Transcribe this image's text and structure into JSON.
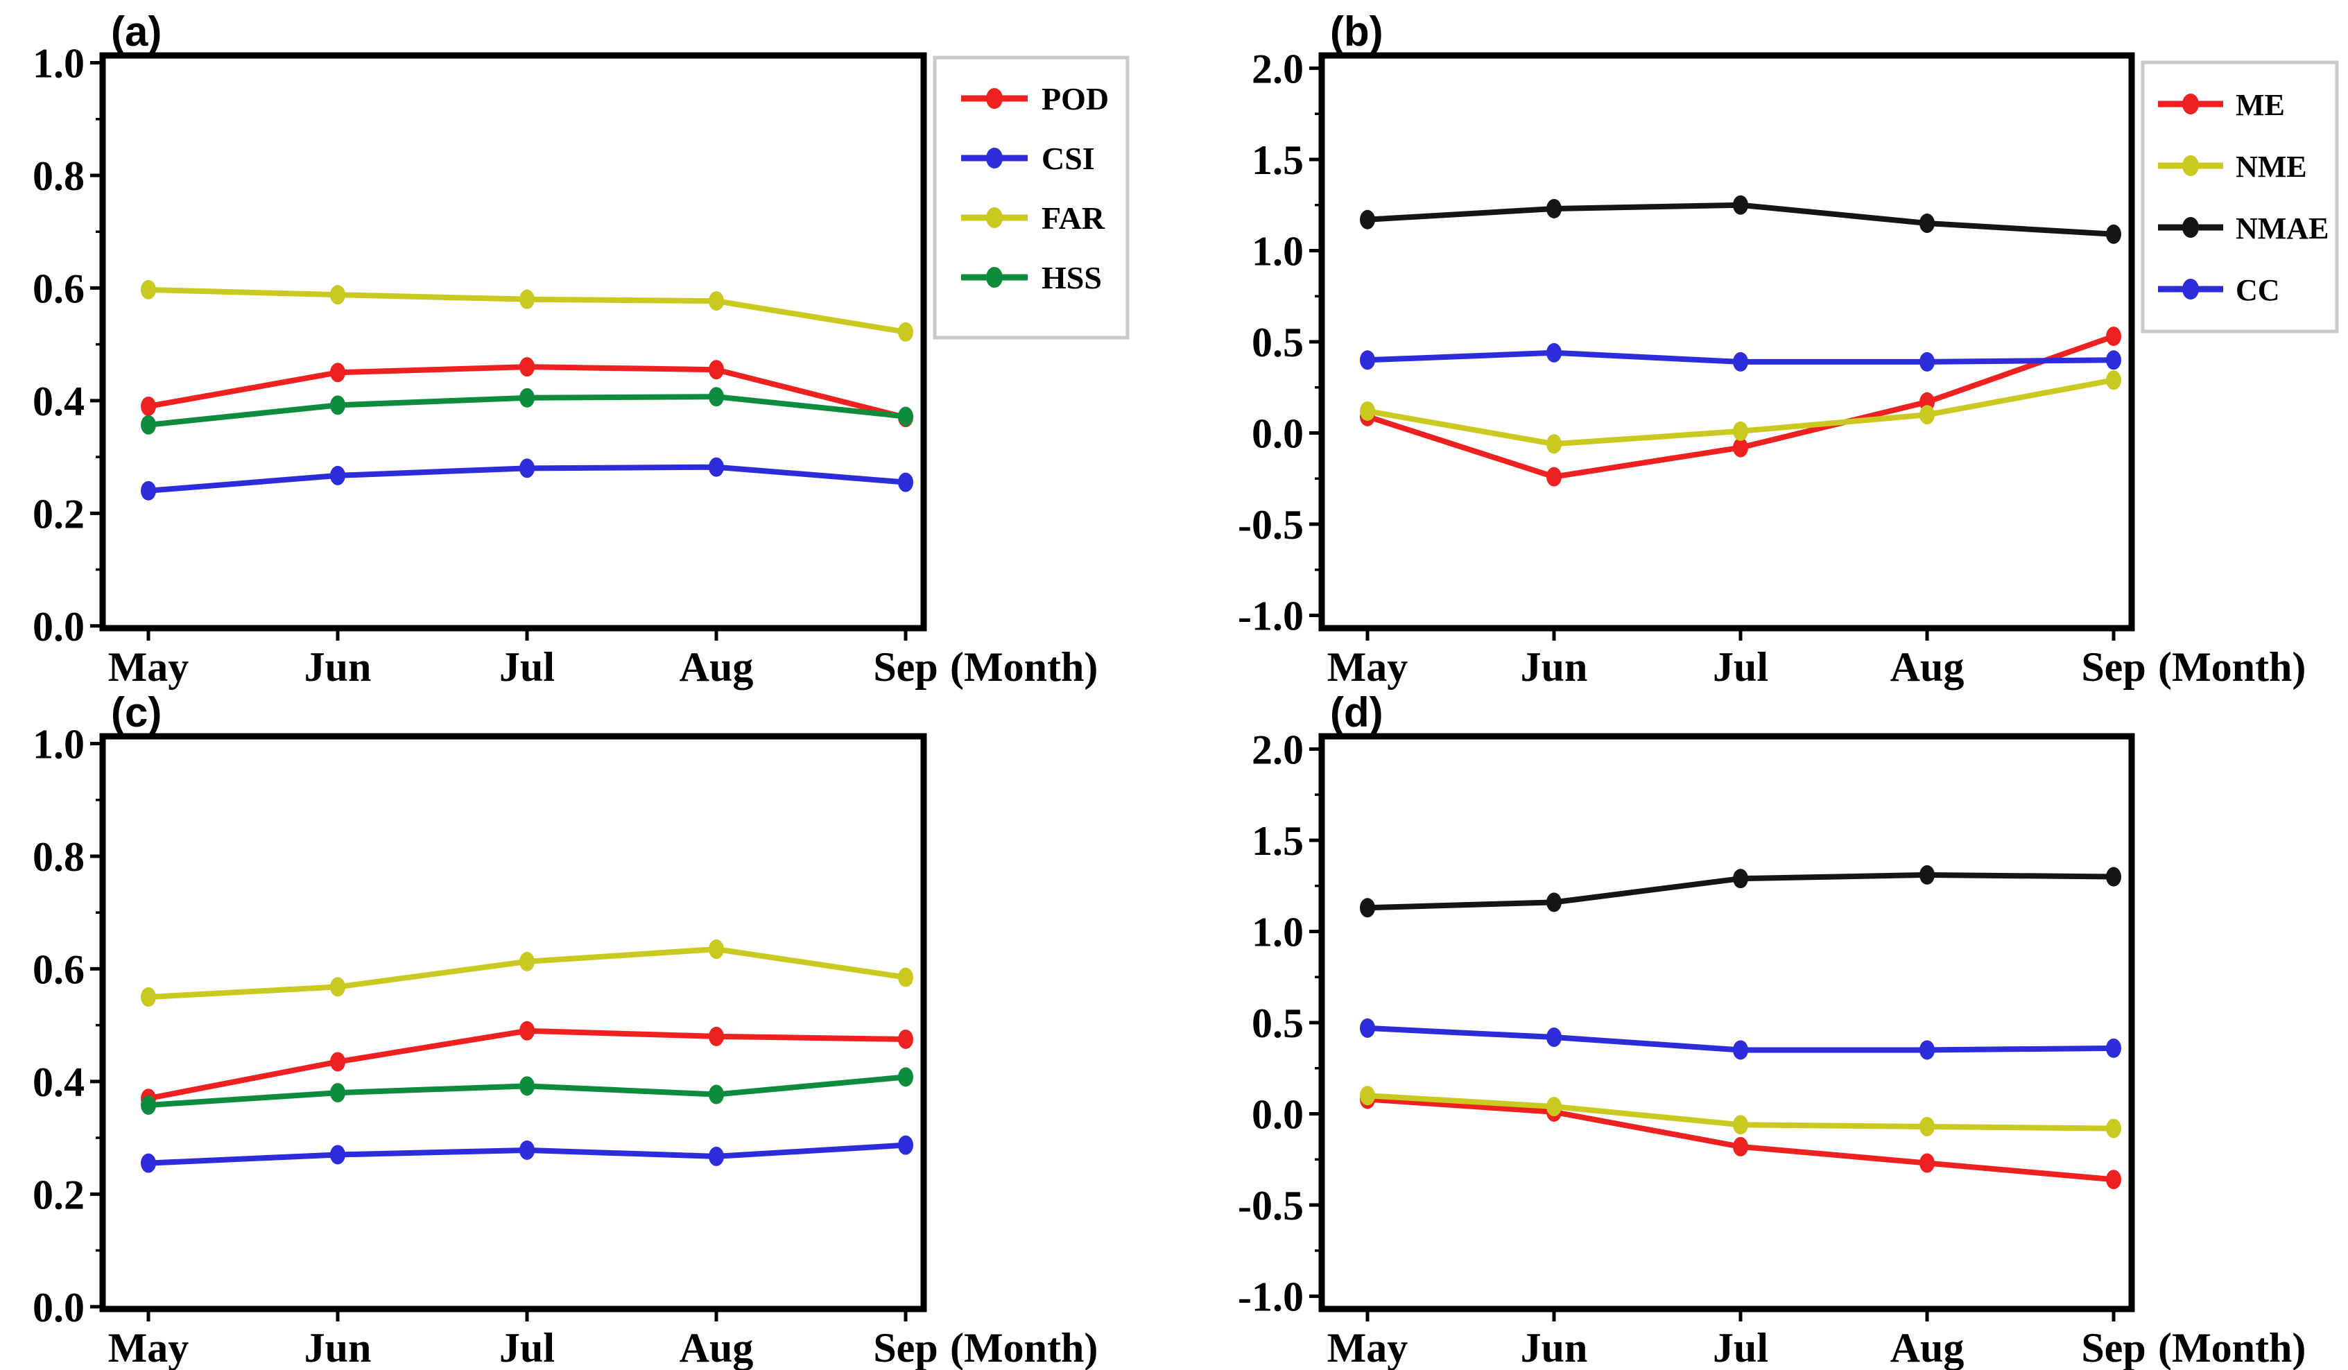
{
  "figure": {
    "background_color": "#ffffff",
    "frame_color": "#000000",
    "legend_border_color": "#c9c9c9",
    "x_axis_unit_label": "(Month)"
  },
  "chart_data": [
    {
      "id": "a",
      "panel_label": "(a)",
      "type": "line",
      "categories": [
        "May",
        "Jun",
        "Jul",
        "Aug",
        "Sep"
      ],
      "x_unit_label": "(Month)",
      "ylim": [
        0.0,
        1.0
      ],
      "ytick_values": [
        0.0,
        0.2,
        0.4,
        0.6,
        0.8,
        1.0
      ],
      "ytick_labels": [
        "0.0",
        "0.2",
        "0.4",
        "0.6",
        "0.8",
        "1.0"
      ],
      "minor_tick_step": 0.1,
      "grid": false,
      "show_legend": true,
      "legend_position": "outside-top-right",
      "series": [
        {
          "name": "POD",
          "color": "#ee2020",
          "values": [
            0.39,
            0.45,
            0.46,
            0.455,
            0.37
          ]
        },
        {
          "name": "CSI",
          "color": "#2c2cdb",
          "values": [
            0.24,
            0.267,
            0.28,
            0.282,
            0.255
          ]
        },
        {
          "name": "FAR",
          "color": "#c9c91f",
          "values": [
            0.597,
            0.588,
            0.58,
            0.577,
            0.522
          ]
        },
        {
          "name": "HSS",
          "color": "#0e8c3e",
          "values": [
            0.357,
            0.392,
            0.405,
            0.407,
            0.372
          ]
        }
      ]
    },
    {
      "id": "b",
      "panel_label": "(b)",
      "type": "line",
      "categories": [
        "May",
        "Jun",
        "Jul",
        "Aug",
        "Sep"
      ],
      "x_unit_label": "(Month)",
      "ylim": [
        -1.0,
        2.0
      ],
      "ytick_values": [
        -1.0,
        -0.5,
        0.0,
        0.5,
        1.0,
        1.5,
        2.0
      ],
      "ytick_labels": [
        "-1.0",
        "-0.5",
        "0.0",
        "0.5",
        "1.0",
        "1.5",
        "2.0"
      ],
      "minor_tick_step": 0.25,
      "grid": false,
      "show_legend": true,
      "legend_position": "outside-top-right",
      "series": [
        {
          "name": "ME",
          "color": "#ee2020",
          "values": [
            0.09,
            -0.24,
            -0.08,
            0.17,
            0.53
          ]
        },
        {
          "name": "NME",
          "color": "#c9c91f",
          "values": [
            0.12,
            -0.06,
            0.01,
            0.1,
            0.29
          ]
        },
        {
          "name": "NMAE",
          "color": "#151515",
          "values": [
            1.17,
            1.23,
            1.25,
            1.15,
            1.09
          ]
        },
        {
          "name": "CC",
          "color": "#2c2cdb",
          "values": [
            0.4,
            0.44,
            0.39,
            0.39,
            0.4
          ]
        }
      ]
    },
    {
      "id": "c",
      "panel_label": "(c)",
      "type": "line",
      "categories": [
        "May",
        "Jun",
        "Jul",
        "Aug",
        "Sep"
      ],
      "x_unit_label": "(Month)",
      "ylim": [
        0.0,
        1.0
      ],
      "ytick_values": [
        0.0,
        0.2,
        0.4,
        0.6,
        0.8,
        1.0
      ],
      "ytick_labels": [
        "0.0",
        "0.2",
        "0.4",
        "0.6",
        "0.8",
        "1.0"
      ],
      "minor_tick_step": 0.1,
      "grid": false,
      "show_legend": false,
      "series": [
        {
          "name": "POD",
          "color": "#ee2020",
          "values": [
            0.37,
            0.435,
            0.49,
            0.48,
            0.475
          ]
        },
        {
          "name": "CSI",
          "color": "#2c2cdb",
          "values": [
            0.255,
            0.27,
            0.278,
            0.267,
            0.287
          ]
        },
        {
          "name": "FAR",
          "color": "#c9c91f",
          "values": [
            0.55,
            0.568,
            0.613,
            0.635,
            0.585
          ]
        },
        {
          "name": "HSS",
          "color": "#0e8c3e",
          "values": [
            0.358,
            0.38,
            0.392,
            0.377,
            0.408
          ]
        }
      ]
    },
    {
      "id": "d",
      "panel_label": "(d)",
      "type": "line",
      "categories": [
        "May",
        "Jun",
        "Jul",
        "Aug",
        "Sep"
      ],
      "x_unit_label": "(Month)",
      "ylim": [
        -1.0,
        2.0
      ],
      "ytick_values": [
        -1.0,
        -0.5,
        0.0,
        0.5,
        1.0,
        1.5,
        2.0
      ],
      "ytick_labels": [
        "-1.0",
        "-0.5",
        "0.0",
        "0.5",
        "1.0",
        "1.5",
        "2.0"
      ],
      "minor_tick_step": 0.25,
      "grid": false,
      "show_legend": false,
      "series": [
        {
          "name": "ME",
          "color": "#ee2020",
          "values": [
            0.08,
            0.01,
            -0.18,
            -0.27,
            -0.36
          ]
        },
        {
          "name": "NME",
          "color": "#c9c91f",
          "values": [
            0.1,
            0.04,
            -0.06,
            -0.07,
            -0.08
          ]
        },
        {
          "name": "NMAE",
          "color": "#151515",
          "values": [
            1.13,
            1.16,
            1.29,
            1.31,
            1.3
          ]
        },
        {
          "name": "CC",
          "color": "#2c2cdb",
          "values": [
            0.47,
            0.42,
            0.35,
            0.35,
            0.36
          ]
        }
      ]
    }
  ]
}
